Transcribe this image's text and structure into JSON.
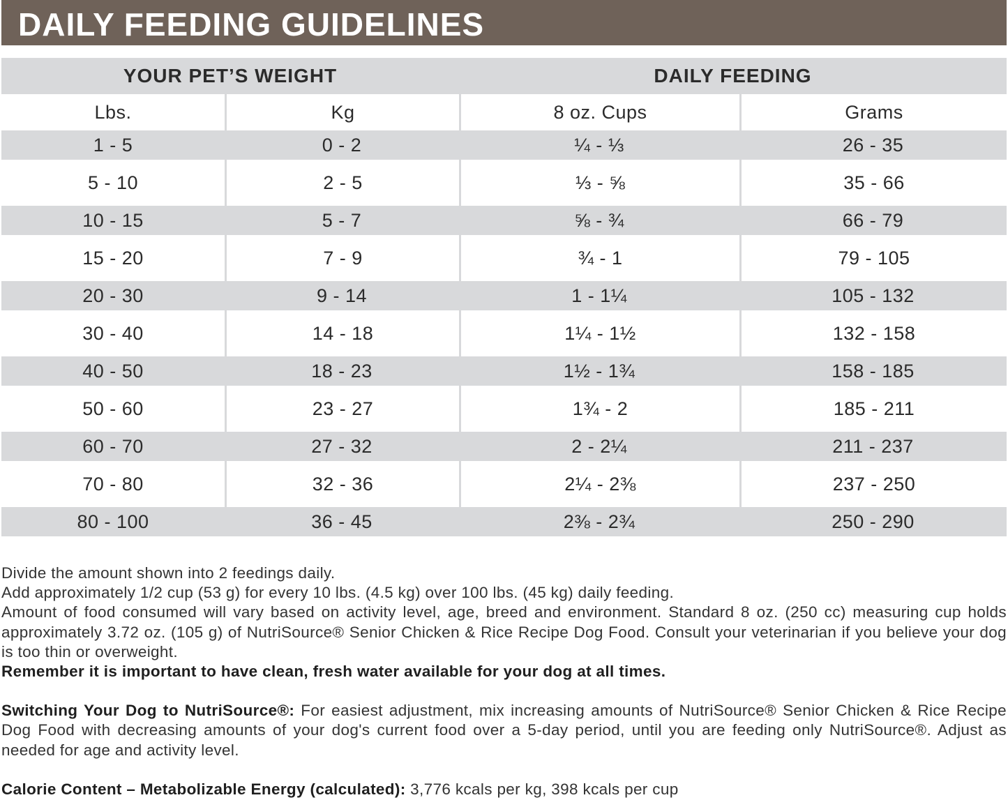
{
  "header": {
    "title": "DAILY FEEDING GUIDELINES"
  },
  "table": {
    "groups": [
      "YOUR PET’S WEIGHT",
      "DAILY FEEDING"
    ],
    "columns": [
      "Lbs.",
      "Kg",
      "8 oz. Cups",
      "Grams"
    ],
    "rows": [
      [
        "1 - 5",
        "0 - 2",
        "¼ - ⅓",
        "26 - 35"
      ],
      [
        "5 - 10",
        "2 - 5",
        "⅓ - ⅝",
        "35 - 66"
      ],
      [
        "10 - 15",
        "5 - 7",
        "⅝ - ¾",
        "66 - 79"
      ],
      [
        "15 - 20",
        "7 - 9",
        "¾ - 1",
        "79 - 105"
      ],
      [
        "20 - 30",
        "9 - 14",
        "1 - 1¼",
        "105 - 132"
      ],
      [
        "30 - 40",
        "14 - 18",
        "1¼ - 1½",
        "132 - 158"
      ],
      [
        "40 - 50",
        "18 - 23",
        "1½ - 1¾",
        "158 - 185"
      ],
      [
        "50 - 60",
        "23 - 27",
        "1¾ - 2",
        "185 - 211"
      ],
      [
        "60 - 70",
        "27 - 32",
        "2 - 2¼",
        "211 - 237"
      ],
      [
        "70 - 80",
        "32 - 36",
        "2¼ - 2⅜",
        "237 - 250"
      ],
      [
        "80 - 100",
        "36 - 45",
        "2⅜ - 2¾",
        "250 - 290"
      ]
    ]
  },
  "notes": {
    "lines": [
      "Divide the amount shown into 2 feedings daily.",
      "Add approximately 1/2 cup (53 g) for every 10 lbs. (4.5 kg) over 100 lbs. (45 kg) daily feeding.",
      "Amount of food consumed will vary based on activity level, age, breed and environment. Standard 8 oz. (250 cc) measuring cup holds approximately 3.72 oz. (105 g) of NutriSource® Senior Chicken & Rice Recipe Dog Food. Consult your veterinarian if you believe your dog is too thin or overweight."
    ],
    "water": "Remember it is important to have clean, fresh water available for your dog at all times.",
    "switching": {
      "label": "Switching Your Dog to NutriSource®:",
      "text": "For easiest adjustment, mix increasing amounts of NutriSource® Senior Chicken & Rice Recipe Dog Food with decreasing amounts of your dog's current food over a 5-day period, until you are feeding only NutriSource®. Adjust as needed for age and activity level."
    },
    "calorie": {
      "label": "Calorie Content – Metabolizable Energy (calculated):",
      "text": "3,776 kcals per kg, 398 kcals per cup"
    }
  }
}
